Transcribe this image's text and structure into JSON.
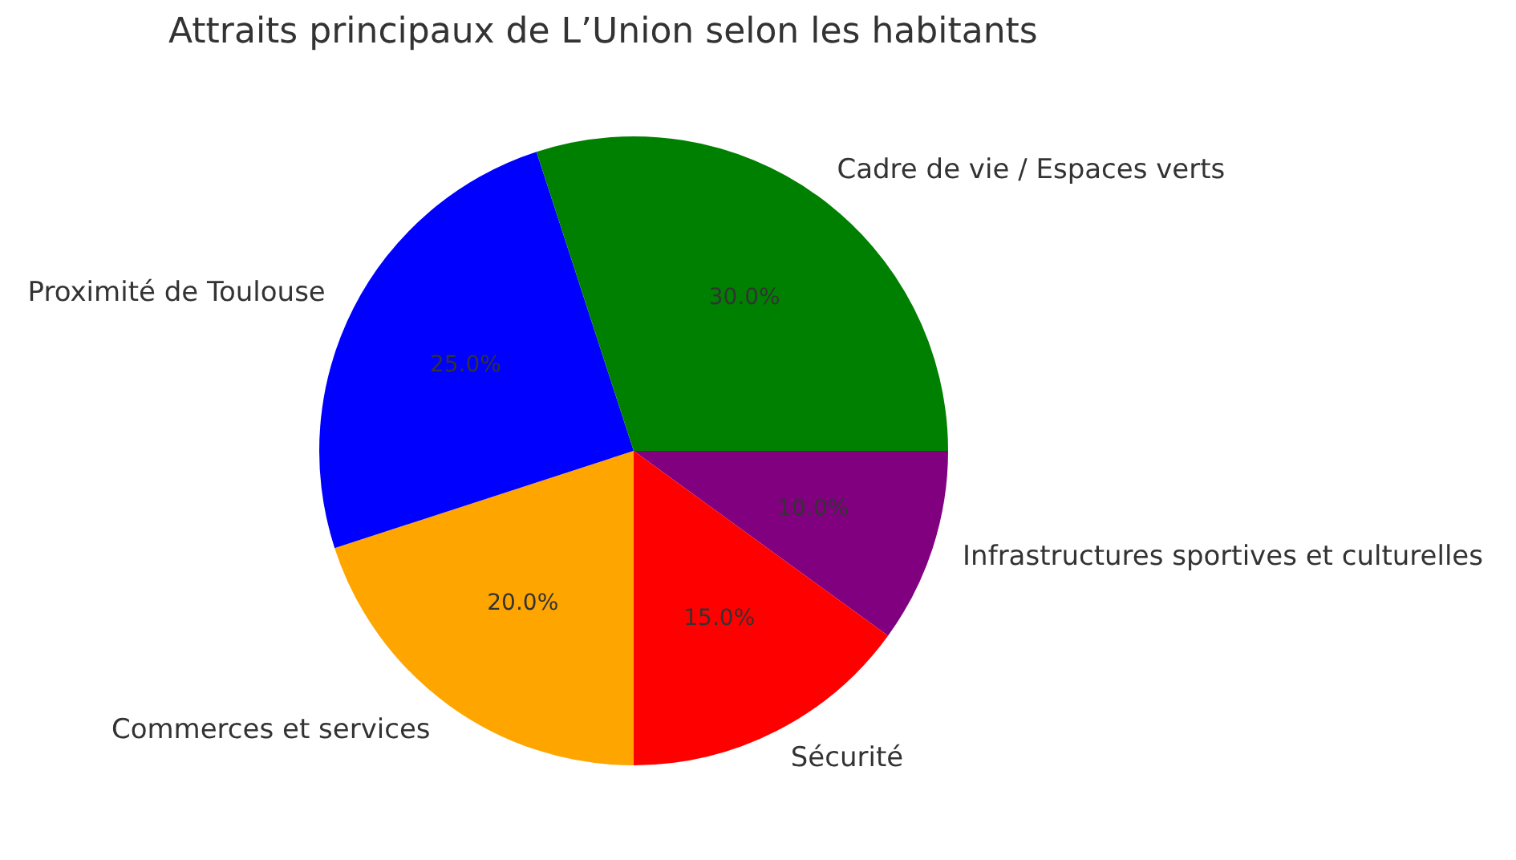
{
  "chart_data": {
    "type": "pie",
    "title": "Attraits principaux de L’Union selon les habitants",
    "categories": [
      "Cadre de vie / Espaces verts",
      "Proximité de Toulouse",
      "Commerces et services",
      "Sécurité",
      "Infrastructures sportives et culturelles"
    ],
    "values": [
      30,
      25,
      20,
      15,
      10
    ],
    "colors": [
      "#008000",
      "#0000ff",
      "#ffa500",
      "#ff0000",
      "#800080"
    ],
    "value_labels": [
      "30.0%",
      "25.0%",
      "20.0%",
      "15.0%",
      "10.0%"
    ],
    "legend": false
  }
}
